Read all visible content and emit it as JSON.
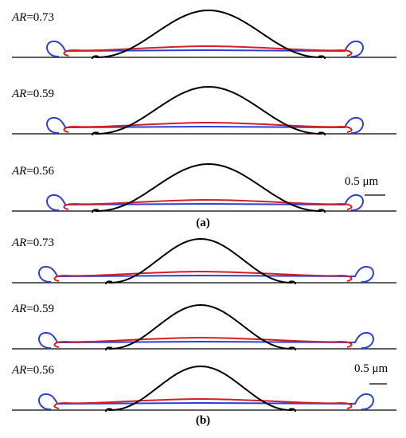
{
  "panels": [
    {
      "label": "(a)",
      "scale_bar": "0.5 μm",
      "rows": [
        {
          "ar_symbol": "AR",
          "ar_value": "=0.73"
        },
        {
          "ar_symbol": "AR",
          "ar_value": "=0.59"
        },
        {
          "ar_symbol": "AR",
          "ar_value": "=0.56"
        }
      ]
    },
    {
      "label": "(b)",
      "scale_bar": "0.5 μm",
      "rows": [
        {
          "ar_symbol": "AR",
          "ar_value": "=0.73"
        },
        {
          "ar_symbol": "AR",
          "ar_value": "=0.59"
        },
        {
          "ar_symbol": "AR",
          "ar_value": "=0.56"
        }
      ]
    }
  ]
}
